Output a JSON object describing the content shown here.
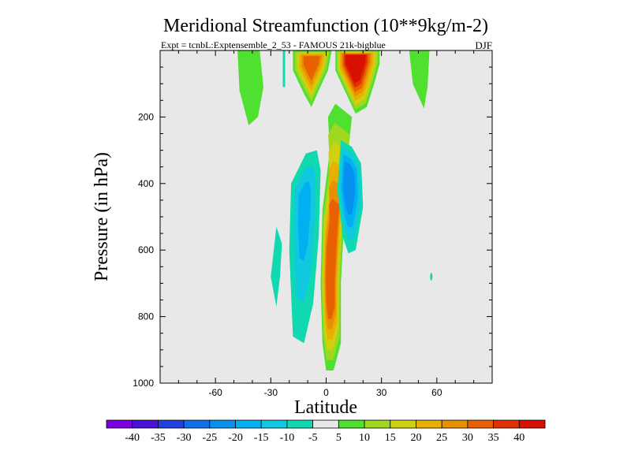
{
  "chart_data": {
    "type": "contour",
    "title": "Meridional Streamfunction (10**9kg/m-2)",
    "subtitle_left": "Expt = tcnbL:Exptensemble_2_53 - FAMOUS 21k-bigblue",
    "subtitle_right": "DJF",
    "xlabel": "Latitude",
    "ylabel": "Pressure (in hPa)",
    "xlim": [
      -90,
      90
    ],
    "ylim": [
      1000,
      0
    ],
    "x_ticks": [
      -60,
      -30,
      0,
      30,
      60
    ],
    "y_ticks": [
      200,
      400,
      600,
      800,
      1000
    ],
    "background_color": "#e8e8e8",
    "levels": [
      -40,
      -35,
      -30,
      -25,
      -20,
      -15,
      -10,
      -5,
      5,
      10,
      15,
      20,
      25,
      30,
      35,
      40
    ],
    "colors": [
      "#7a00e0",
      "#4a10d8",
      "#2040e0",
      "#1070e8",
      "#0890f0",
      "#00b0f0",
      "#10c8e0",
      "#10d8b0",
      "#e8e8e8",
      "#50e030",
      "#a0d820",
      "#d0d010",
      "#e8b000",
      "#e89000",
      "#e86000",
      "#e03000",
      "#d81000"
    ],
    "features": [
      {
        "name": "positive-cell-equatorial",
        "levels": [
          5,
          10,
          15,
          20,
          25,
          30
        ],
        "peak_value": 30,
        "center": [
          2,
          680
        ]
      },
      {
        "name": "positive-cell-upper-left",
        "levels": [
          5,
          10,
          15,
          20,
          25,
          30
        ],
        "peak_value": 30,
        "center": [
          -8,
          50
        ]
      },
      {
        "name": "positive-cell-upper-right",
        "levels": [
          5,
          10,
          15,
          20,
          25,
          30,
          35,
          40
        ],
        "peak_value": 40,
        "center": [
          15,
          40
        ]
      },
      {
        "name": "negative-cell-left",
        "levels": [
          -5,
          -10,
          -15
        ],
        "peak_value": -15,
        "center": [
          -12,
          450
        ]
      },
      {
        "name": "negative-cell-right",
        "levels": [
          -5,
          -10,
          -15,
          -20
        ],
        "peak_value": -20,
        "center": [
          12,
          390
        ]
      },
      {
        "name": "negative-cell-small",
        "levels": [
          -5
        ],
        "peak_value": -5,
        "center": [
          -26,
          680
        ]
      },
      {
        "name": "positive-patch-north-upper",
        "levels": [
          5
        ],
        "peak_value": 5,
        "center": [
          -40,
          80
        ]
      },
      {
        "name": "positive-patch-south-upper",
        "levels": [
          5
        ],
        "peak_value": 5,
        "center": [
          50,
          80
        ]
      }
    ]
  }
}
